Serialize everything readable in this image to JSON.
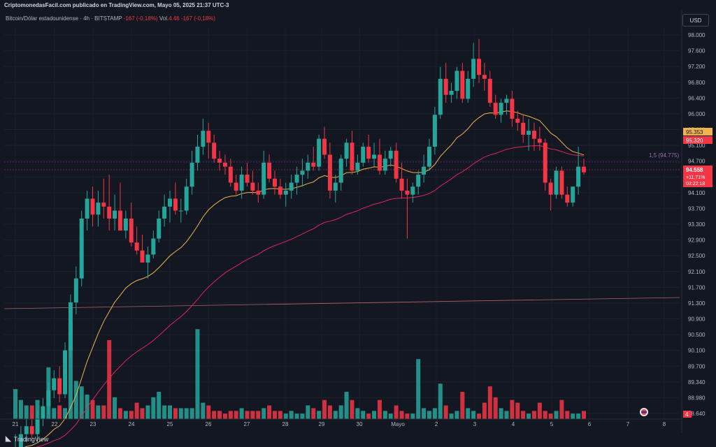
{
  "header": {
    "publisher": "CriptomonedasFacil.com publicado en TradingView.com, Mayo 05, 2025 21:37 UTC-3",
    "symbol_info": "Bitcoin/Dólar estadounidense · 4h · BITSTAMP",
    "change": "-167 (-0,18%)",
    "vol_label": "Vol.",
    "vol_value": "4.46",
    "vol_change": "-167 (-0,18%)"
  },
  "currency_button": "USD",
  "footer": {
    "brand": "TradingView"
  },
  "colors": {
    "up": "#26a69a",
    "down": "#f23645",
    "ema_fast": "#f0b44c",
    "ema_slow": "#e0245e",
    "bg": "#131722"
  },
  "chart_data": {
    "type": "candlestick",
    "timeframe": "4h",
    "price_axis": {
      "ticks": [
        98000,
        97600,
        97200,
        96800,
        96400,
        96000,
        95600,
        95100,
        94700,
        94300,
        94100,
        93700,
        93300,
        92900,
        92500,
        92100,
        91700,
        91300,
        90900,
        90500,
        90100,
        89700,
        89340,
        88980,
        88640
      ],
      "tick_labels": [
        "98.000",
        "97.600",
        "97.200",
        "96.800",
        "96.400",
        "96.000",
        "95.600",
        "95.100",
        "94.700",
        "94.300",
        "94.100",
        "93.700",
        "93.300",
        "92.900",
        "92.500",
        "92.100",
        "91.700",
        "91.300",
        "90.900",
        "90.500",
        "90.100",
        "89.700",
        "89.340",
        "88.980",
        "88.640"
      ]
    },
    "time_axis": {
      "ticks": [
        "21",
        "22",
        "23",
        "24",
        "25",
        "26",
        "27",
        "28",
        "29",
        "30",
        "Mayo",
        "2",
        "3",
        "4",
        "5",
        "6",
        "7",
        "8"
      ]
    },
    "price_labels": [
      {
        "value": "95.353",
        "color": "#f0b44c"
      },
      {
        "value": "95.320",
        "color": "#f23645"
      },
      {
        "value": "94.558",
        "color": "#f23645",
        "change": "+11,71%",
        "countdown": "03:22:18"
      }
    ],
    "annotation": "1,5 (94.775)",
    "volume_badge": "4",
    "candles": [
      [
        87300,
        88000,
        87100,
        87600
      ],
      [
        87600,
        88200,
        87400,
        88000
      ],
      [
        88000,
        88400,
        87800,
        88200
      ],
      [
        88200,
        88500,
        87900,
        88000
      ],
      [
        88000,
        88600,
        87800,
        88400
      ],
      [
        88400,
        88900,
        88200,
        88700
      ],
      [
        88700,
        89300,
        88500,
        89100
      ],
      [
        89100,
        89600,
        88900,
        89400
      ],
      [
        89400,
        89700,
        88800,
        89000
      ],
      [
        89000,
        90300,
        88900,
        90100
      ],
      [
        90100,
        91500,
        89900,
        91300
      ],
      [
        91300,
        92200,
        91000,
        91900
      ],
      [
        91900,
        93600,
        91700,
        93400
      ],
      [
        93400,
        94100,
        93100,
        93900
      ],
      [
        93900,
        94200,
        93200,
        93500
      ],
      [
        93500,
        94100,
        93200,
        93800
      ],
      [
        93800,
        94400,
        93400,
        93700
      ],
      [
        93700,
        94500,
        93100,
        93400
      ],
      [
        93400,
        94000,
        93100,
        93600
      ],
      [
        93600,
        94300,
        93200,
        93100
      ],
      [
        93100,
        93600,
        92900,
        93400
      ],
      [
        93400,
        93800,
        92700,
        92800
      ],
      [
        92800,
        93200,
        92500,
        92600
      ],
      [
        92600,
        93000,
        92300,
        92300
      ],
      [
        92300,
        92700,
        91900,
        92500
      ],
      [
        92500,
        93100,
        92400,
        92900
      ],
      [
        92900,
        93600,
        92800,
        93400
      ],
      [
        93400,
        94000,
        93200,
        93700
      ],
      [
        93700,
        94100,
        93300,
        93900
      ],
      [
        93900,
        94300,
        93500,
        93600
      ],
      [
        93600,
        93900,
        93300,
        93600
      ],
      [
        93600,
        94400,
        93500,
        94200
      ],
      [
        94200,
        95100,
        94000,
        94800
      ],
      [
        94800,
        95500,
        94600,
        95200
      ],
      [
        95200,
        95900,
        95000,
        95600
      ],
      [
        95600,
        95800,
        94900,
        95300
      ],
      [
        95300,
        95500,
        94800,
        94900
      ],
      [
        94900,
        95100,
        94600,
        94800
      ],
      [
        94800,
        95000,
        94500,
        94700
      ],
      [
        94700,
        94900,
        94200,
        94300
      ],
      [
        94300,
        94500,
        94000,
        94100
      ],
      [
        94100,
        94700,
        93900,
        94500
      ],
      [
        94500,
        94800,
        94200,
        94300
      ],
      [
        94300,
        94600,
        94000,
        94100
      ],
      [
        94100,
        94300,
        93800,
        94000
      ],
      [
        94000,
        95100,
        93900,
        94800
      ],
      [
        94800,
        95000,
        94300,
        94400
      ],
      [
        94400,
        94600,
        94000,
        94200
      ],
      [
        94200,
        94400,
        93900,
        94000
      ],
      [
        94000,
        94300,
        93700,
        94100
      ],
      [
        94100,
        94500,
        93900,
        94300
      ],
      [
        94300,
        94700,
        94000,
        94500
      ],
      [
        94500,
        94900,
        94200,
        94600
      ],
      [
        94600,
        95000,
        94400,
        94800
      ],
      [
        94800,
        95200,
        94600,
        94700
      ],
      [
        94700,
        95500,
        94600,
        95400
      ],
      [
        95400,
        95700,
        94900,
        95000
      ],
      [
        95000,
        95300,
        93900,
        94100
      ],
      [
        94100,
        94500,
        93800,
        94300
      ],
      [
        94300,
        95000,
        94100,
        94900
      ],
      [
        94900,
        95400,
        94700,
        95300
      ],
      [
        95300,
        95600,
        94500,
        94600
      ],
      [
        94600,
        95000,
        94500,
        94800
      ],
      [
        94800,
        95300,
        94700,
        95200
      ],
      [
        95200,
        95500,
        94800,
        94900
      ],
      [
        94900,
        95300,
        94700,
        95000
      ],
      [
        95000,
        95400,
        94500,
        94600
      ],
      [
        94600,
        95100,
        94500,
        94900
      ],
      [
        94900,
        95200,
        94700,
        95100
      ],
      [
        95100,
        95300,
        94300,
        94400
      ],
      [
        94400,
        94800,
        93900,
        94100
      ],
      [
        94100,
        94400,
        92900,
        94000
      ],
      [
        94000,
        94300,
        93800,
        94200
      ],
      [
        94200,
        94600,
        94000,
        94500
      ],
      [
        94500,
        95000,
        94300,
        94700
      ],
      [
        94700,
        95400,
        94600,
        95200
      ],
      [
        95200,
        96200,
        95000,
        96000
      ],
      [
        96000,
        97200,
        95900,
        96900
      ],
      [
        96900,
        97300,
        96300,
        96500
      ],
      [
        96500,
        96800,
        96300,
        96600
      ],
      [
        96600,
        97200,
        96400,
        97100
      ],
      [
        97100,
        97300,
        96300,
        96400
      ],
      [
        96400,
        97100,
        96300,
        96900
      ],
      [
        96900,
        97800,
        96700,
        97400
      ],
      [
        97400,
        97900,
        96800,
        97000
      ],
      [
        97000,
        97300,
        96600,
        96900
      ],
      [
        96900,
        97100,
        96200,
        96300
      ],
      [
        96300,
        96500,
        95900,
        96000
      ],
      [
        96000,
        96400,
        95800,
        96300
      ],
      [
        96300,
        96500,
        96000,
        96400
      ],
      [
        96400,
        96600,
        95700,
        95900
      ],
      [
        95900,
        96100,
        95600,
        95800
      ],
      [
        95800,
        96000,
        95300,
        95500
      ],
      [
        95500,
        95900,
        95100,
        95600
      ],
      [
        95600,
        95800,
        95100,
        95400
      ],
      [
        95400,
        95700,
        95100,
        95300
      ],
      [
        95300,
        95400,
        94100,
        94300
      ],
      [
        94300,
        94400,
        93600,
        94000
      ],
      [
        94000,
        94700,
        93900,
        94600
      ],
      [
        94600,
        94700,
        93900,
        94000
      ],
      [
        94000,
        94200,
        93700,
        93800
      ],
      [
        93800,
        94200,
        93700,
        94200
      ],
      [
        94200,
        95200,
        94000,
        94700
      ],
      [
        94700,
        94900,
        94500,
        94558
      ]
    ],
    "volumes": [
      22,
      14,
      10,
      10,
      14,
      8,
      38,
      8,
      10,
      8,
      70,
      28,
      24,
      18,
      14,
      10,
      10,
      58,
      16,
      8,
      6,
      6,
      12,
      8,
      10,
      16,
      20,
      10,
      10,
      8,
      8,
      8,
      8,
      66,
      12,
      10,
      6,
      6,
      4,
      6,
      6,
      8,
      6,
      6,
      6,
      8,
      10,
      6,
      6,
      4,
      6,
      4,
      4,
      10,
      8,
      6,
      14,
      10,
      6,
      10,
      20,
      14,
      8,
      6,
      4,
      6,
      14,
      6,
      4,
      10,
      6,
      4,
      4,
      44,
      8,
      6,
      8,
      26,
      10,
      4,
      6,
      20,
      8,
      6,
      4,
      12,
      24,
      16,
      8,
      6,
      14,
      12,
      6,
      4,
      6,
      12,
      6,
      4,
      6,
      14,
      6,
      4,
      4,
      6
    ]
  }
}
